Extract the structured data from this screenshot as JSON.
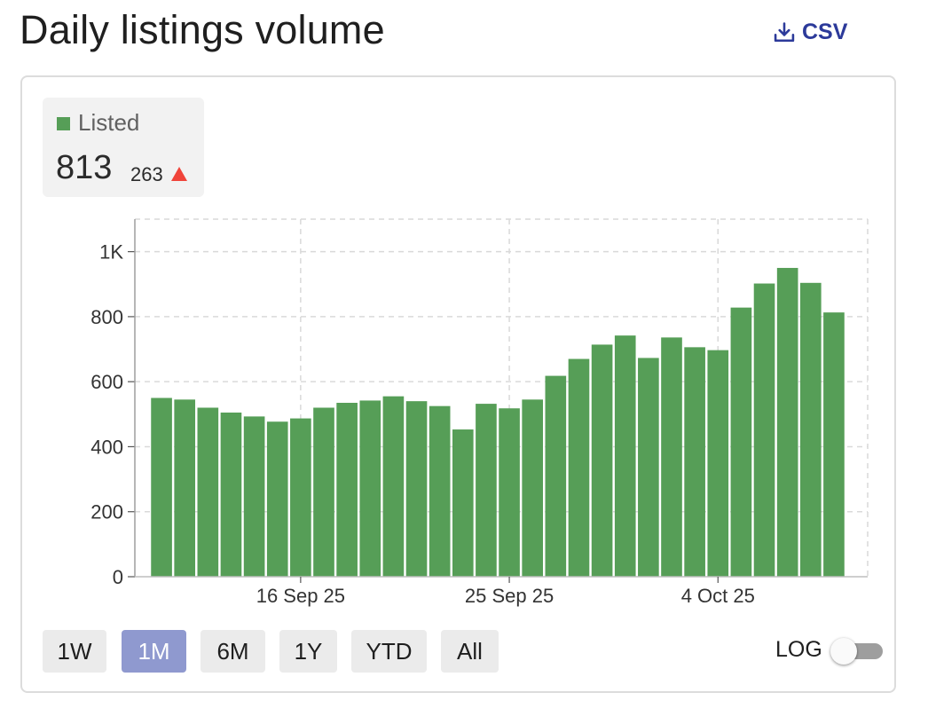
{
  "header": {
    "title": "Daily listings volume",
    "csv_label": "CSV"
  },
  "stat": {
    "legend_label": "Listed",
    "value": "813",
    "delta": "263",
    "delta_direction": "up"
  },
  "colors": {
    "bar": "#569e57",
    "accent": "#2c3a9a",
    "active_range": "#8f99cf",
    "delta_up": "#f0443a"
  },
  "ranges": {
    "options": [
      "1W",
      "1M",
      "6M",
      "1Y",
      "YTD",
      "All"
    ],
    "selected": "1M"
  },
  "scale_toggle": {
    "label": "LOG",
    "enabled": false
  },
  "chart_data": {
    "type": "bar",
    "title": "Daily listings volume",
    "xlabel": "",
    "ylabel": "",
    "ylim": [
      0,
      1100
    ],
    "yticks": [
      0,
      200,
      400,
      600,
      800,
      1000
    ],
    "ytick_labels": [
      "0",
      "200",
      "400",
      "600",
      "800",
      "1K"
    ],
    "xtick_labels": [
      {
        "label": "16 Sep 25",
        "index": 6
      },
      {
        "label": "25 Sep 25",
        "index": 15
      },
      {
        "label": "4 Oct 25",
        "index": 24
      }
    ],
    "grid": true,
    "series": [
      {
        "name": "Listed",
        "values": [
          550,
          545,
          520,
          505,
          493,
          477,
          487,
          520,
          535,
          542,
          555,
          540,
          525,
          453,
          532,
          518,
          545,
          618,
          670,
          714,
          742,
          673,
          736,
          706,
          697,
          828,
          902,
          950,
          904,
          813
        ]
      }
    ],
    "categories": [
      "10 Sep",
      "11 Sep",
      "12 Sep",
      "13 Sep",
      "14 Sep",
      "15 Sep",
      "16 Sep",
      "17 Sep",
      "18 Sep",
      "19 Sep",
      "20 Sep",
      "21 Sep",
      "22 Sep",
      "23 Sep",
      "24 Sep",
      "25 Sep",
      "26 Sep",
      "27 Sep",
      "28 Sep",
      "29 Sep",
      "30 Sep",
      "1 Oct",
      "2 Oct",
      "3 Oct",
      "4 Oct",
      "5 Oct",
      "6 Oct",
      "7 Oct",
      "8 Oct",
      "9 Oct"
    ]
  }
}
